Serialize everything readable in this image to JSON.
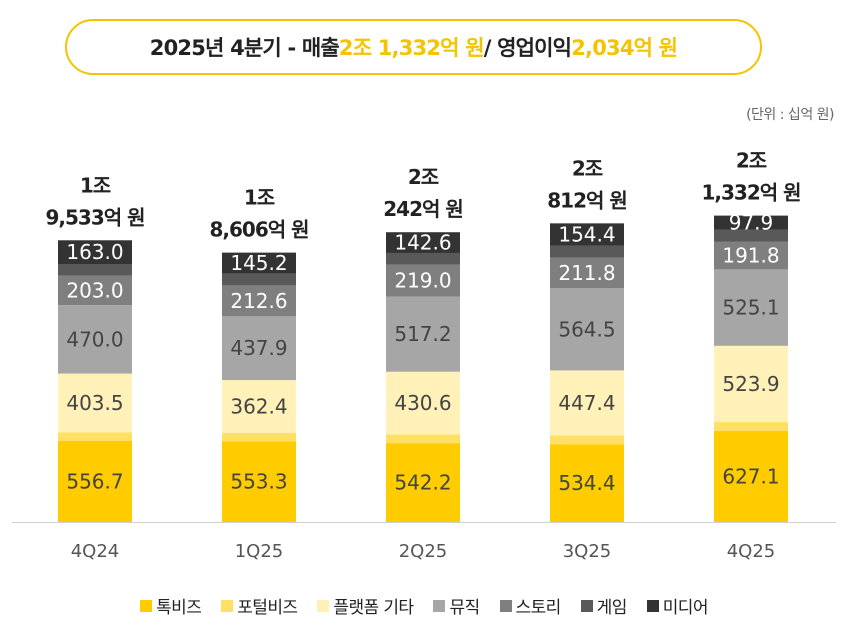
{
  "headline": {
    "prefix": "2025년 4분기 - 매출 ",
    "revenue": "2조 1,332억 원",
    "separator": " / 영업이익 ",
    "operating_profit": "2,034억 원"
  },
  "unit_note": "(단위 : 십억 원)",
  "colors": {
    "accent": "#f5c400",
    "talkbiz": "#ffcc00",
    "portalbiz": "#ffe066",
    "platform_etc": "#fff1b8",
    "music": "#a6a6a6",
    "story": "#7f7f7f",
    "game": "#595959",
    "media": "#333333"
  },
  "chart_data": {
    "type": "bar",
    "stacked": true,
    "categories": [
      "4Q24",
      "1Q25",
      "2Q25",
      "3Q25",
      "4Q25"
    ],
    "totals": [
      [
        "1조",
        "9,533억 원"
      ],
      [
        "1조",
        "8,606억 원"
      ],
      [
        "2조",
        "242억 원"
      ],
      [
        "2조",
        "812억 원"
      ],
      [
        "2조",
        "1,332억 원"
      ]
    ],
    "series": [
      {
        "name": "톡비즈",
        "color": "#ffcc00",
        "values": [
          556.7,
          553.3,
          542.2,
          534.4,
          627.1
        ],
        "labels": [
          "556.7",
          "553.3",
          "542.2",
          "534.4",
          "627.1"
        ]
      },
      {
        "name": "포털비즈",
        "color": "#ffe066",
        "values": [
          null,
          null,
          null,
          null,
          null
        ],
        "labels": [
          "",
          "",
          "",
          "",
          ""
        ]
      },
      {
        "name": "플랫폼 기타",
        "color": "#fff1b8",
        "values": [
          403.5,
          362.4,
          430.6,
          447.4,
          523.9
        ],
        "labels": [
          "403.5",
          "362.4",
          "430.6",
          "447.4",
          "523.9"
        ]
      },
      {
        "name": "뮤직",
        "color": "#a6a6a6",
        "values": [
          470.0,
          437.9,
          517.2,
          564.5,
          525.1
        ],
        "labels": [
          "470.0",
          "437.9",
          "517.2",
          "564.5",
          "525.1"
        ]
      },
      {
        "name": "스토리",
        "color": "#7f7f7f",
        "values": [
          203.0,
          212.6,
          219.0,
          211.8,
          191.8
        ],
        "labels": [
          "203.0",
          "212.6",
          "219.0",
          "211.8",
          "191.8"
        ]
      },
      {
        "name": "게임",
        "color": "#595959",
        "values": [
          null,
          null,
          null,
          null,
          null
        ],
        "labels": [
          "",
          "",
          "",
          "",
          ""
        ]
      },
      {
        "name": "미디어",
        "color": "#333333",
        "values": [
          163.0,
          145.2,
          142.6,
          154.4,
          97.9
        ],
        "labels": [
          "163.0",
          "145.2",
          "142.6",
          "154.4",
          "97.9"
        ]
      }
    ],
    "unlabeled_segment_estimates": {
      "포털비즈": [
        60,
        60,
        60,
        60,
        60
      ],
      "게임": [
        80,
        80,
        80,
        80,
        80
      ]
    },
    "ylim": [
      0,
      2200
    ],
    "grid": false,
    "legend_position": "bottom"
  }
}
